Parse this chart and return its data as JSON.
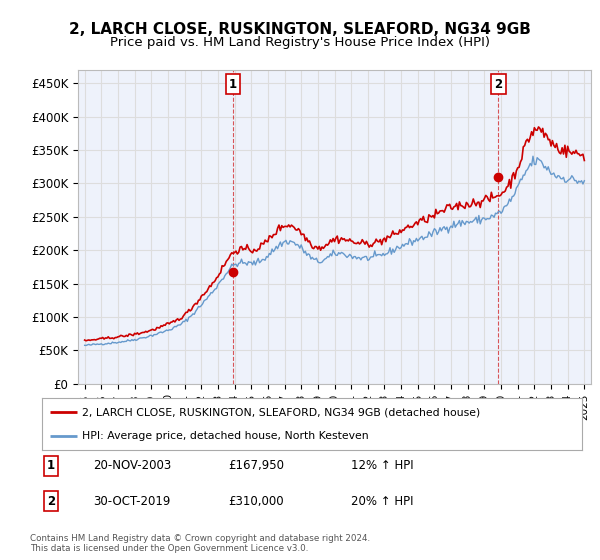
{
  "title": "2, LARCH CLOSE, RUSKINGTON, SLEAFORD, NG34 9GB",
  "subtitle": "Price paid vs. HM Land Registry's House Price Index (HPI)",
  "title_fontsize": 11,
  "subtitle_fontsize": 9.5,
  "ylabel_ticks": [
    "£0",
    "£50K",
    "£100K",
    "£150K",
    "£200K",
    "£250K",
    "£300K",
    "£350K",
    "£400K",
    "£450K"
  ],
  "ytick_vals": [
    0,
    50000,
    100000,
    150000,
    200000,
    250000,
    300000,
    350000,
    400000,
    450000
  ],
  "ylim": [
    0,
    470000
  ],
  "legend_line1": "2, LARCH CLOSE, RUSKINGTON, SLEAFORD, NG34 9GB (detached house)",
  "legend_line2": "HPI: Average price, detached house, North Kesteven",
  "sale1_label": "1",
  "sale1_date": "20-NOV-2003",
  "sale1_price": "£167,950",
  "sale1_hpi": "12% ↑ HPI",
  "sale2_label": "2",
  "sale2_date": "30-OCT-2019",
  "sale2_price": "£310,000",
  "sale2_hpi": "20% ↑ HPI",
  "footer": "Contains HM Land Registry data © Crown copyright and database right 2024.\nThis data is licensed under the Open Government Licence v3.0.",
  "line_color_red": "#cc0000",
  "line_color_blue": "#6699cc",
  "sale_marker_color": "#cc0000",
  "vline_color": "#cc0000",
  "grid_color": "#dddddd",
  "bg_color": "#ffffff",
  "plot_bg_color": "#eef2fb",
  "sale1_x_year": 2003.9,
  "sale2_x_year": 2019.83,
  "sale1_y": 167950,
  "sale2_y": 310000,
  "hpi_base": [
    [
      1994.5,
      55000
    ],
    [
      1995,
      57000
    ],
    [
      1996,
      59500
    ],
    [
      1997,
      62000
    ],
    [
      1998,
      66000
    ],
    [
      1999,
      72000
    ],
    [
      2000,
      80000
    ],
    [
      2001,
      93000
    ],
    [
      2002,
      118000
    ],
    [
      2003,
      148000
    ],
    [
      2004,
      178000
    ],
    [
      2005,
      180000
    ],
    [
      2006,
      192000
    ],
    [
      2007,
      212000
    ],
    [
      2008,
      203000
    ],
    [
      2009,
      183000
    ],
    [
      2010,
      194000
    ],
    [
      2011,
      191000
    ],
    [
      2012,
      188000
    ],
    [
      2013,
      194000
    ],
    [
      2014,
      206000
    ],
    [
      2015,
      216000
    ],
    [
      2016,
      226000
    ],
    [
      2017,
      237000
    ],
    [
      2018,
      242000
    ],
    [
      2019,
      247000
    ],
    [
      2020,
      258000
    ],
    [
      2021,
      293000
    ],
    [
      2022,
      333000
    ],
    [
      2023,
      317000
    ],
    [
      2024,
      307000
    ],
    [
      2025,
      302000
    ],
    [
      2025.5,
      300000
    ]
  ],
  "red_base": [
    [
      1994.5,
      62000
    ],
    [
      1995,
      64000
    ],
    [
      1996,
      67000
    ],
    [
      1997,
      70000
    ],
    [
      1998,
      74000
    ],
    [
      1999,
      80000
    ],
    [
      2000,
      89000
    ],
    [
      2001,
      103000
    ],
    [
      2002,
      130000
    ],
    [
      2003,
      162000
    ],
    [
      2004,
      198000
    ],
    [
      2005,
      200000
    ],
    [
      2006,
      215000
    ],
    [
      2007,
      237000
    ],
    [
      2008,
      226000
    ],
    [
      2009,
      204000
    ],
    [
      2010,
      216000
    ],
    [
      2011,
      213000
    ],
    [
      2012,
      210000
    ],
    [
      2013,
      216000
    ],
    [
      2014,
      229000
    ],
    [
      2015,
      241000
    ],
    [
      2016,
      252000
    ],
    [
      2017,
      264000
    ],
    [
      2018,
      269000
    ],
    [
      2019,
      275000
    ],
    [
      2020,
      285000
    ],
    [
      2021,
      325000
    ],
    [
      2022,
      380000
    ],
    [
      2023,
      362000
    ],
    [
      2024,
      348000
    ],
    [
      2025,
      342000
    ],
    [
      2025.5,
      340000
    ]
  ],
  "xtick_years": [
    1995,
    1996,
    1997,
    1998,
    1999,
    2000,
    2001,
    2002,
    2003,
    2004,
    2005,
    2006,
    2007,
    2008,
    2009,
    2010,
    2011,
    2012,
    2013,
    2014,
    2015,
    2016,
    2017,
    2018,
    2019,
    2020,
    2021,
    2022,
    2023,
    2024,
    2025
  ]
}
